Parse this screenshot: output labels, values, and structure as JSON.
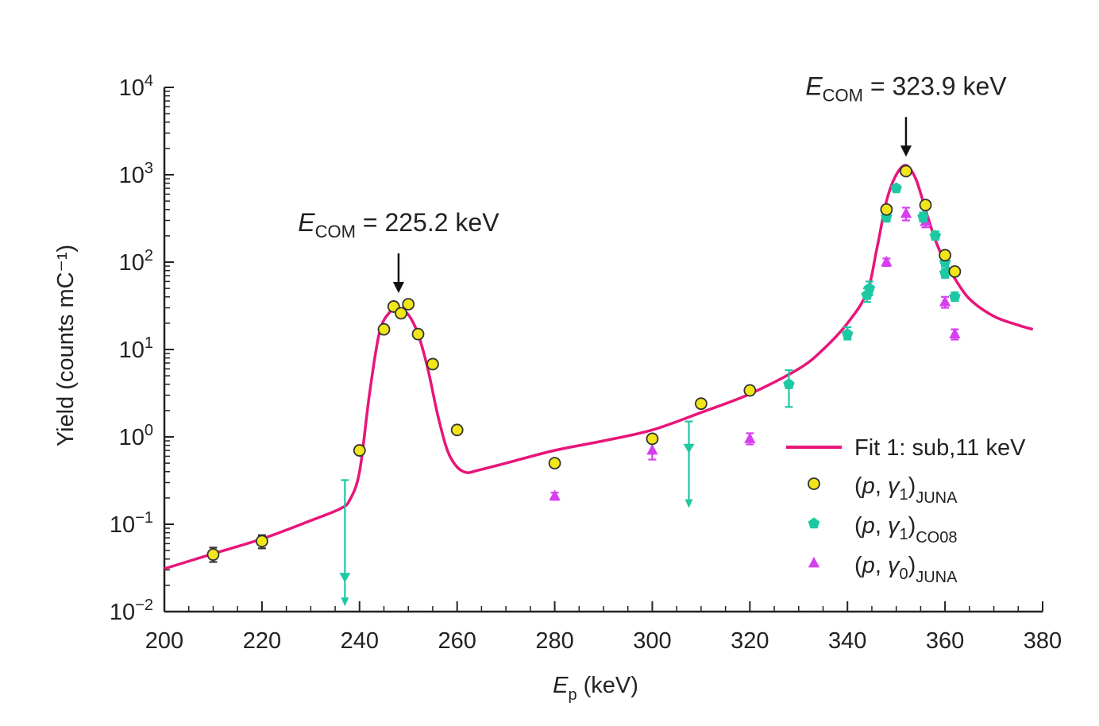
{
  "chart_data": {
    "type": "scatter",
    "xlabel": {
      "var": "E",
      "sub": "p",
      "unit": " (keV)"
    },
    "ylabel": "Yield (counts mC⁻¹)",
    "xlim": [
      200,
      380
    ],
    "ylim_log10": [
      -2,
      4
    ],
    "yscale": "log",
    "x_ticks": [
      200,
      220,
      240,
      260,
      280,
      300,
      320,
      340,
      360,
      380
    ],
    "y_ticks": [
      {
        "base": "10",
        "exp": "−2"
      },
      {
        "base": "10",
        "exp": "−1"
      },
      {
        "base": "10",
        "exp": "0"
      },
      {
        "base": "10",
        "exp": "1"
      },
      {
        "base": "10",
        "exp": "2"
      },
      {
        "base": "10",
        "exp": "3"
      },
      {
        "base": "10",
        "exp": "4"
      }
    ],
    "annotations": [
      {
        "var": "E",
        "sub": "COM",
        "text": " = 225.2 keV",
        "x": 248,
        "y": 33
      },
      {
        "var": "E",
        "sub": "COM",
        "text": " = 323.9 keV",
        "x": 352,
        "y": 1200
      }
    ],
    "fit": {
      "name": "Fit 1: sub,11 keV",
      "color": "#e8157a",
      "x": [
        200,
        210,
        220,
        230,
        236,
        238,
        240,
        242,
        244,
        246,
        248,
        250,
        252,
        254,
        256,
        258,
        260,
        262,
        264,
        270,
        280,
        290,
        300,
        310,
        320,
        330,
        335,
        340,
        344,
        346,
        348,
        350,
        352,
        354,
        356,
        358,
        360,
        362,
        365,
        370,
        375,
        378
      ],
      "y": [
        0.031,
        0.046,
        0.068,
        0.11,
        0.15,
        0.19,
        0.4,
        3.0,
        15,
        26,
        29,
        25,
        15,
        6,
        1.8,
        0.7,
        0.45,
        0.39,
        0.41,
        0.5,
        0.7,
        0.9,
        1.2,
        1.9,
        3.1,
        6,
        10,
        20,
        45,
        140,
        500,
        1000,
        1280,
        900,
        400,
        180,
        100,
        65,
        38,
        24,
        19,
        17
      ]
    },
    "series": [
      {
        "name": "(p, γ1)JUNA",
        "label": {
          "open": "(",
          "var1": "p",
          "mid": ", ",
          "var2": "γ",
          "sub1": "1",
          "close": ")",
          "sub2": "JUNA"
        },
        "marker": "circle",
        "fill": "#f2e61a",
        "stroke": "#333333",
        "points": [
          {
            "x": 210,
            "y": 0.045,
            "lo": 0.037,
            "hi": 0.054
          },
          {
            "x": 220,
            "y": 0.064,
            "lo": 0.053,
            "hi": 0.075
          },
          {
            "x": 240,
            "y": 0.7
          },
          {
            "x": 245,
            "y": 17
          },
          {
            "x": 247,
            "y": 31
          },
          {
            "x": 248.5,
            "y": 26
          },
          {
            "x": 250,
            "y": 33
          },
          {
            "x": 252,
            "y": 15
          },
          {
            "x": 255,
            "y": 6.8
          },
          {
            "x": 260,
            "y": 1.2
          },
          {
            "x": 280,
            "y": 0.5
          },
          {
            "x": 300,
            "y": 0.95
          },
          {
            "x": 310,
            "y": 2.4
          },
          {
            "x": 320,
            "y": 3.4
          },
          {
            "x": 348,
            "y": 400
          },
          {
            "x": 352,
            "y": 1100
          },
          {
            "x": 356,
            "y": 450
          },
          {
            "x": 360,
            "y": 120
          },
          {
            "x": 362,
            "y": 78
          }
        ]
      },
      {
        "name": "(p, γ1)CO08",
        "label": {
          "open": "(",
          "var1": "p",
          "mid": ", ",
          "var2": "γ",
          "sub1": "1",
          "close": ")",
          "sub2": "CO08"
        },
        "marker": "pentagon",
        "fill": "#1dc9a3",
        "stroke": "#1dc9a3",
        "points": [
          {
            "x": 237,
            "y": 0.025,
            "lo": 0.012,
            "hi": 0.32,
            "limit": true
          },
          {
            "x": 307.5,
            "y": 0.75,
            "lo": 0.16,
            "hi": 1.5,
            "limit": true
          },
          {
            "x": 328,
            "y": 4.0,
            "lo": 2.2,
            "hi": 5.8
          },
          {
            "x": 340,
            "y": 15,
            "lo": 13,
            "hi": 18
          },
          {
            "x": 344,
            "y": 42,
            "lo": 35,
            "hi": 50
          },
          {
            "x": 344.5,
            "y": 50,
            "lo": 42,
            "hi": 60
          },
          {
            "x": 348,
            "y": 330,
            "lo": 290,
            "hi": 370
          },
          {
            "x": 350,
            "y": 700,
            "lo": 650,
            "hi": 760
          },
          {
            "x": 355.5,
            "y": 330,
            "lo": 290,
            "hi": 370
          },
          {
            "x": 358,
            "y": 200,
            "lo": 180,
            "hi": 225
          },
          {
            "x": 360,
            "y": 100,
            "lo": 90,
            "hi": 112
          },
          {
            "x": 360,
            "y": 75,
            "lo": 66,
            "hi": 85
          },
          {
            "x": 362,
            "y": 40,
            "lo": 36,
            "hi": 45
          }
        ]
      },
      {
        "name": "(p, γ0)JUNA",
        "label": {
          "open": "(",
          "var1": "p",
          "mid": ", ",
          "var2": "γ",
          "sub1": "0",
          "close": ")",
          "sub2": "JUNA"
        },
        "marker": "triangle",
        "fill": "#d63ff0",
        "stroke": "#d63ff0",
        "points": [
          {
            "x": 280,
            "y": 0.21,
            "lo": 0.19,
            "hi": 0.23
          },
          {
            "x": 300,
            "y": 0.7,
            "lo": 0.55,
            "hi": 0.85
          },
          {
            "x": 320,
            "y": 0.95,
            "lo": 0.82,
            "hi": 1.1
          },
          {
            "x": 348,
            "y": 100,
            "lo": 90,
            "hi": 110
          },
          {
            "x": 352,
            "y": 360,
            "lo": 300,
            "hi": 420
          },
          {
            "x": 356,
            "y": 290,
            "lo": 250,
            "hi": 330
          },
          {
            "x": 360,
            "y": 35,
            "lo": 30,
            "hi": 40
          },
          {
            "x": 362,
            "y": 15,
            "lo": 13,
            "hi": 17
          }
        ]
      }
    ],
    "legend_position": "lower-right"
  }
}
